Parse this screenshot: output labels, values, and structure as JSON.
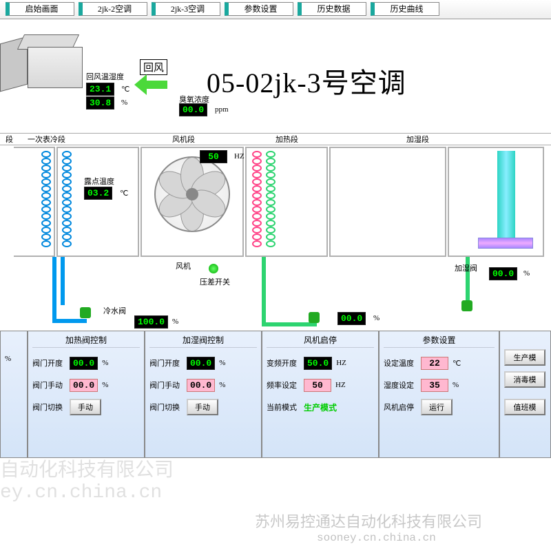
{
  "colors": {
    "lcd_bg": "#000000",
    "lcd_fg": "#00ff00",
    "pink_bg": "#ffb8d0",
    "panel_bg1": "#e8f0fc",
    "panel_bg2": "#d4e4f8",
    "blue_pipe": "#0099ee",
    "red_pipe": "#ff4488",
    "green_pipe": "#2dd470",
    "arrow": "#4bd93a",
    "teal_tab": "#1aa89e"
  },
  "tabs": [
    "启始画面",
    "2jk-2空调",
    "2jk-3空调",
    "参数设置",
    "历史数据",
    "历史曲线"
  ],
  "title": "05-02jk-3号空调",
  "return_air": {
    "box_label": "回风",
    "sensor_label": "回风温湿度",
    "temp": "23.1",
    "temp_unit": "℃",
    "humidity": "30.8",
    "humidity_unit": "%"
  },
  "ozone": {
    "label": "臭氧浓度",
    "value": "00.0",
    "unit": "ppm"
  },
  "sections": {
    "s0": "段",
    "s1": "一次表冷段",
    "s2": "风机段",
    "s3": "加热段",
    "s4": "加湿段"
  },
  "dewpoint": {
    "label": "露点温度",
    "value": "03.2",
    "unit": "℃"
  },
  "fan_hz_disp": {
    "value": "50",
    "unit": "HZ"
  },
  "cold_valve": {
    "label": "冷水阀",
    "value": "100.0",
    "unit": "%"
  },
  "heat_valve": {
    "value": "00.0",
    "unit": "%"
  },
  "humid_valve": {
    "label": "加湿阀",
    "value": "00.0",
    "unit": "%"
  },
  "fan_label": "风机",
  "pressure_label": "压差开关",
  "panels": {
    "p0": {
      "partial_value": "",
      "partial_unit": "%"
    },
    "heating": {
      "title": "加热阀控制",
      "opening_label": "阀门开度",
      "opening_value": "00.0",
      "opening_unit": "%",
      "manual_label": "阀门手动",
      "manual_value": "00.0",
      "manual_unit": "%",
      "switch_label": "阀门切换",
      "switch_btn": "手动"
    },
    "humid": {
      "title": "加湿阀控制",
      "opening_label": "阀门开度",
      "opening_value": "00.0",
      "opening_unit": "%",
      "manual_label": "阀门手动",
      "manual_value": "00.0",
      "manual_unit": "%",
      "switch_label": "阀门切换",
      "switch_btn": "手动"
    },
    "fan": {
      "title": "风机启停",
      "vfd_label": "变频开度",
      "vfd_value": "50.0",
      "vfd_unit": "HZ",
      "freq_label": "频率设定",
      "freq_value": "50",
      "freq_unit": "HZ",
      "mode_label": "当前模式",
      "mode_value": "生产模式"
    },
    "params": {
      "title": "参数设置",
      "temp_label": "设定温度",
      "temp_value": "22",
      "temp_unit": "℃",
      "humid_label": "湿度设定",
      "humid_value": "35",
      "humid_unit": "%",
      "run_label": "风机启停",
      "run_btn": "运行"
    },
    "modes": {
      "b1": "生产模",
      "b2": "消毒模",
      "b3": "值班模"
    }
  },
  "watermarks": {
    "wm1": "自动化科技有限公司",
    "wm2": "ey.cn.china.cn",
    "wm3": "苏州易控通达自动化科技有限公司",
    "wm4": "sooney.cn.china.cn"
  }
}
